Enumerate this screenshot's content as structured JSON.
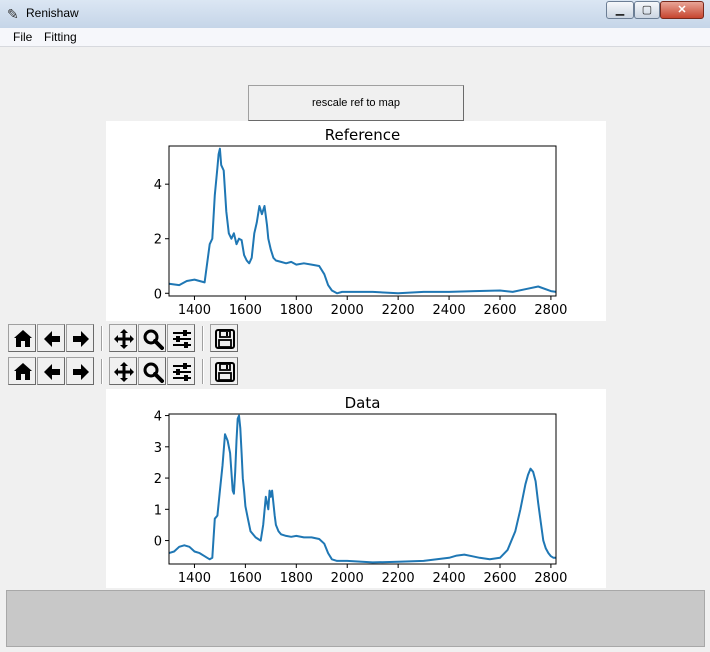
{
  "window": {
    "title": "Renishaw",
    "app_icon": "feather-icon",
    "controls": {
      "minimize": "▁",
      "maximize": "▢",
      "close": "✕"
    }
  },
  "menu": {
    "items": [
      "File",
      "Fitting"
    ]
  },
  "rescale_button_label": "rescale ref to map",
  "toolbar_icons": [
    "home-icon",
    "back-arrow-icon",
    "forward-arrow-icon",
    "pan-icon",
    "zoom-icon",
    "configure-subplots-icon",
    "save-icon"
  ],
  "line_color": "#1f77b4",
  "chart_data": [
    {
      "type": "line",
      "title": "Reference",
      "xlim": [
        1300,
        2820
      ],
      "ylim": [
        -0.1,
        5.4
      ],
      "xticks": [
        1400,
        1600,
        1800,
        2000,
        2200,
        2400,
        2600,
        2800
      ],
      "yticks": [
        0,
        2,
        4
      ],
      "series": [
        {
          "x": [
            1300,
            1340,
            1370,
            1400,
            1440,
            1460,
            1470,
            1480,
            1490,
            1495,
            1500,
            1505,
            1515,
            1525,
            1535,
            1545,
            1555,
            1565,
            1575,
            1585,
            1595,
            1605,
            1615,
            1625,
            1635,
            1645,
            1655,
            1665,
            1675,
            1685,
            1690,
            1700,
            1710,
            1720,
            1740,
            1760,
            1780,
            1800,
            1830,
            1860,
            1890,
            1910,
            1925,
            1940,
            1960,
            1980,
            2000,
            2100,
            2200,
            2300,
            2400,
            2500,
            2600,
            2650,
            2700,
            2750,
            2800,
            2820
          ],
          "y": [
            0.35,
            0.3,
            0.45,
            0.5,
            0.4,
            1.8,
            2.0,
            3.6,
            4.6,
            5.1,
            5.3,
            4.7,
            4.5,
            3.0,
            2.2,
            2.0,
            2.2,
            1.8,
            2.0,
            1.95,
            1.4,
            1.2,
            1.1,
            1.3,
            2.2,
            2.6,
            3.2,
            2.9,
            3.2,
            2.5,
            2.0,
            1.6,
            1.3,
            1.2,
            1.15,
            1.1,
            1.15,
            1.05,
            1.1,
            1.05,
            1.0,
            0.7,
            0.3,
            0.1,
            0.0,
            0.05,
            0.05,
            0.05,
            0.0,
            0.05,
            0.05,
            0.08,
            0.1,
            0.05,
            0.15,
            0.25,
            0.08,
            0.05
          ]
        }
      ]
    },
    {
      "type": "line",
      "title": "Data",
      "xlim": [
        1300,
        2820
      ],
      "ylim": [
        -0.75,
        4.05
      ],
      "xticks": [
        1400,
        1600,
        1800,
        2000,
        2200,
        2400,
        2600,
        2800
      ],
      "yticks": [
        0,
        1,
        2,
        3,
        4
      ],
      "series": [
        {
          "x": [
            1300,
            1320,
            1340,
            1360,
            1380,
            1400,
            1420,
            1440,
            1450,
            1460,
            1470,
            1480,
            1490,
            1500,
            1510,
            1520,
            1530,
            1540,
            1545,
            1550,
            1555,
            1560,
            1565,
            1570,
            1575,
            1580,
            1585,
            1590,
            1595,
            1600,
            1610,
            1620,
            1630,
            1640,
            1650,
            1660,
            1670,
            1680,
            1690,
            1695,
            1700,
            1705,
            1710,
            1715,
            1720,
            1730,
            1740,
            1760,
            1780,
            1800,
            1830,
            1860,
            1890,
            1910,
            1925,
            1940,
            1960,
            2000,
            2100,
            2200,
            2300,
            2400,
            2430,
            2460,
            2490,
            2520,
            2560,
            2600,
            2630,
            2660,
            2680,
            2700,
            2710,
            2720,
            2730,
            2740,
            2750,
            2760,
            2770,
            2780,
            2790,
            2800,
            2810,
            2820
          ],
          "y": [
            -0.4,
            -0.35,
            -0.2,
            -0.15,
            -0.2,
            -0.35,
            -0.4,
            -0.5,
            -0.55,
            -0.6,
            -0.55,
            0.7,
            0.8,
            1.6,
            2.4,
            3.4,
            3.2,
            2.8,
            2.2,
            1.6,
            1.5,
            2.2,
            3.2,
            3.9,
            4.0,
            3.6,
            2.8,
            2.0,
            1.6,
            1.1,
            0.7,
            0.3,
            0.2,
            0.1,
            0.05,
            0.0,
            0.5,
            1.4,
            1.0,
            1.6,
            1.4,
            1.6,
            1.2,
            0.8,
            0.5,
            0.3,
            0.2,
            0.15,
            0.12,
            0.15,
            0.1,
            0.1,
            0.05,
            -0.1,
            -0.4,
            -0.6,
            -0.65,
            -0.65,
            -0.7,
            -0.68,
            -0.65,
            -0.55,
            -0.48,
            -0.45,
            -0.5,
            -0.55,
            -0.6,
            -0.55,
            -0.3,
            0.3,
            1.0,
            1.8,
            2.1,
            2.3,
            2.2,
            1.9,
            1.2,
            0.6,
            0.0,
            -0.25,
            -0.4,
            -0.5,
            -0.55,
            -0.55
          ]
        }
      ]
    }
  ]
}
